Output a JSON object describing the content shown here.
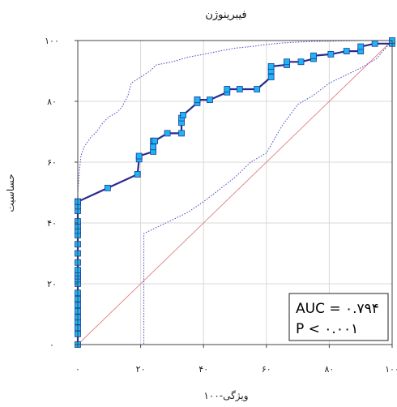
{
  "chart_data": {
    "type": "line",
    "title": "فیبرینوژن",
    "xlabel": "ویژگی-۱۰۰",
    "ylabel": "حساسیت",
    "xlim": [
      0,
      100
    ],
    "ylim": [
      0,
      100
    ],
    "x_ticks": [
      0,
      20,
      40,
      60,
      80,
      100
    ],
    "y_ticks": [
      0,
      20,
      40,
      60,
      80,
      100
    ],
    "x_tick_labels": [
      "۰",
      "۲۰",
      "۴۰",
      "۶۰",
      "۸۰",
      "۱۰۰"
    ],
    "y_tick_labels": [
      "۰",
      "۲۰",
      "۴۰",
      "۶۰",
      "۸۰",
      "۱۰۰"
    ],
    "grid": true,
    "stats": {
      "auc_text": "AUC = ۰.۷۹۴",
      "p_text": "P < ۰.۰۰۱"
    },
    "colors": {
      "roc_line": "#2a2a8c",
      "marker_fill": "#1fb4f2",
      "marker_stroke": "#1a3a9c",
      "ci_line": "#5555cc",
      "diagonal": "#e08080",
      "grid": "#d8d8d8"
    },
    "series": [
      {
        "name": "",
        "style": "roc",
        "x": [
          0,
          0,
          0,
          0,
          0,
          0,
          0,
          0,
          0,
          0,
          0,
          0,
          0,
          0,
          0,
          0,
          0,
          0,
          0,
          0,
          0,
          0,
          0,
          0,
          0,
          0,
          9.5,
          19,
          19.5,
          19.5,
          24,
          24,
          24,
          24.5,
          28.5,
          33,
          33,
          33,
          33.5,
          38,
          38,
          38,
          42,
          47.5,
          47.5,
          51.5,
          57,
          61.5,
          61.5,
          61.5,
          66.5,
          66.5,
          71,
          75,
          75,
          80.5,
          85.5,
          90,
          90,
          94.5,
          100,
          100
        ],
        "y": [
          0,
          3.5,
          5.5,
          7.5,
          9,
          11,
          13,
          15,
          17,
          20,
          21.5,
          22.5,
          23.5,
          24.5,
          27,
          30,
          33,
          36,
          37.5,
          39,
          40.5,
          44,
          45.5,
          47,
          47,
          47,
          51.5,
          56,
          61,
          62,
          63.5,
          65,
          67,
          67,
          69.5,
          69.5,
          73,
          74.5,
          75.5,
          79.5,
          80.5,
          80.5,
          80.5,
          83,
          84,
          84,
          84,
          88,
          90,
          91.5,
          92,
          93,
          93,
          94,
          95,
          95.5,
          96.5,
          96.5,
          98,
          99,
          99,
          100
        ]
      },
      {
        "name": "",
        "style": "ci",
        "x": [
          0,
          0,
          0.5,
          1,
          2,
          4,
          6,
          8,
          10,
          12,
          14,
          15,
          16,
          17,
          20,
          23,
          25,
          30,
          35,
          40,
          45,
          50,
          55,
          60,
          65,
          70,
          75,
          80,
          85,
          90,
          95,
          100
        ],
        "y": [
          0,
          50,
          57,
          62,
          65,
          68,
          70,
          73,
          75,
          76,
          78,
          80,
          82,
          86,
          88,
          90,
          92,
          93,
          94.5,
          95.5,
          96.5,
          97.5,
          98,
          98.7,
          99.2,
          99.5,
          99.7,
          99.8,
          99.9,
          100,
          100,
          100
        ]
      },
      {
        "name": "",
        "style": "ci",
        "x": [
          0,
          20,
          21,
          21,
          21,
          25,
          30,
          35,
          40,
          45,
          50,
          55,
          60,
          65,
          70,
          75,
          80,
          85,
          90,
          95,
          100
        ],
        "y": [
          0,
          0,
          0,
          36,
          36.5,
          38.5,
          41,
          43.5,
          47,
          51,
          55,
          60,
          63,
          72,
          79,
          82,
          86,
          88.5,
          91,
          94,
          100
        ]
      }
    ]
  }
}
